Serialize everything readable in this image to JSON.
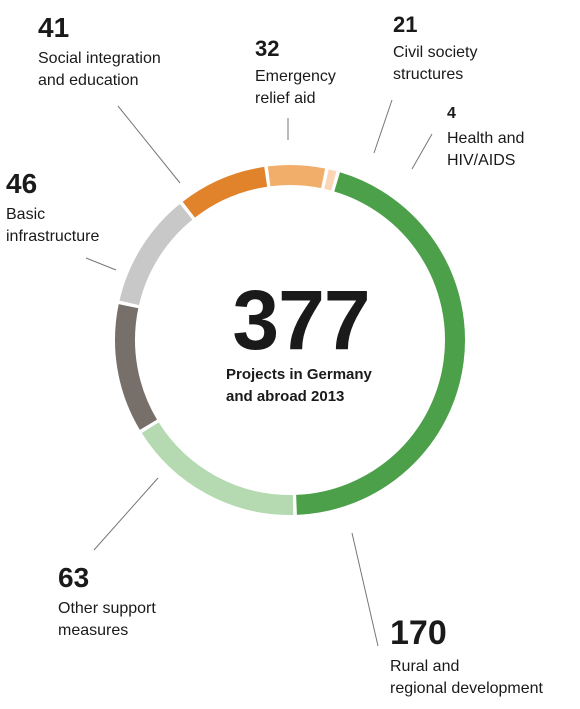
{
  "chart_data": {
    "type": "pie",
    "total": "377",
    "total_caption": "Projects in Germany\nand abroad 2013",
    "categories": [
      "Rural and\nregional development",
      "Other support\nmeasures",
      "Basic\ninfrastructure",
      "Social integration\nand education",
      "Emergency\nrelief aid",
      "Civil society\nstructures",
      "Health and\nHIV/AIDS"
    ],
    "values": [
      170,
      63,
      46,
      41,
      32,
      21,
      4
    ],
    "colors": [
      "#4ca04a",
      "#b5d9b1",
      "#77706a",
      "#c8c8c8",
      "#e0832b",
      "#f1ae6b",
      "#fad6b7"
    ]
  }
}
